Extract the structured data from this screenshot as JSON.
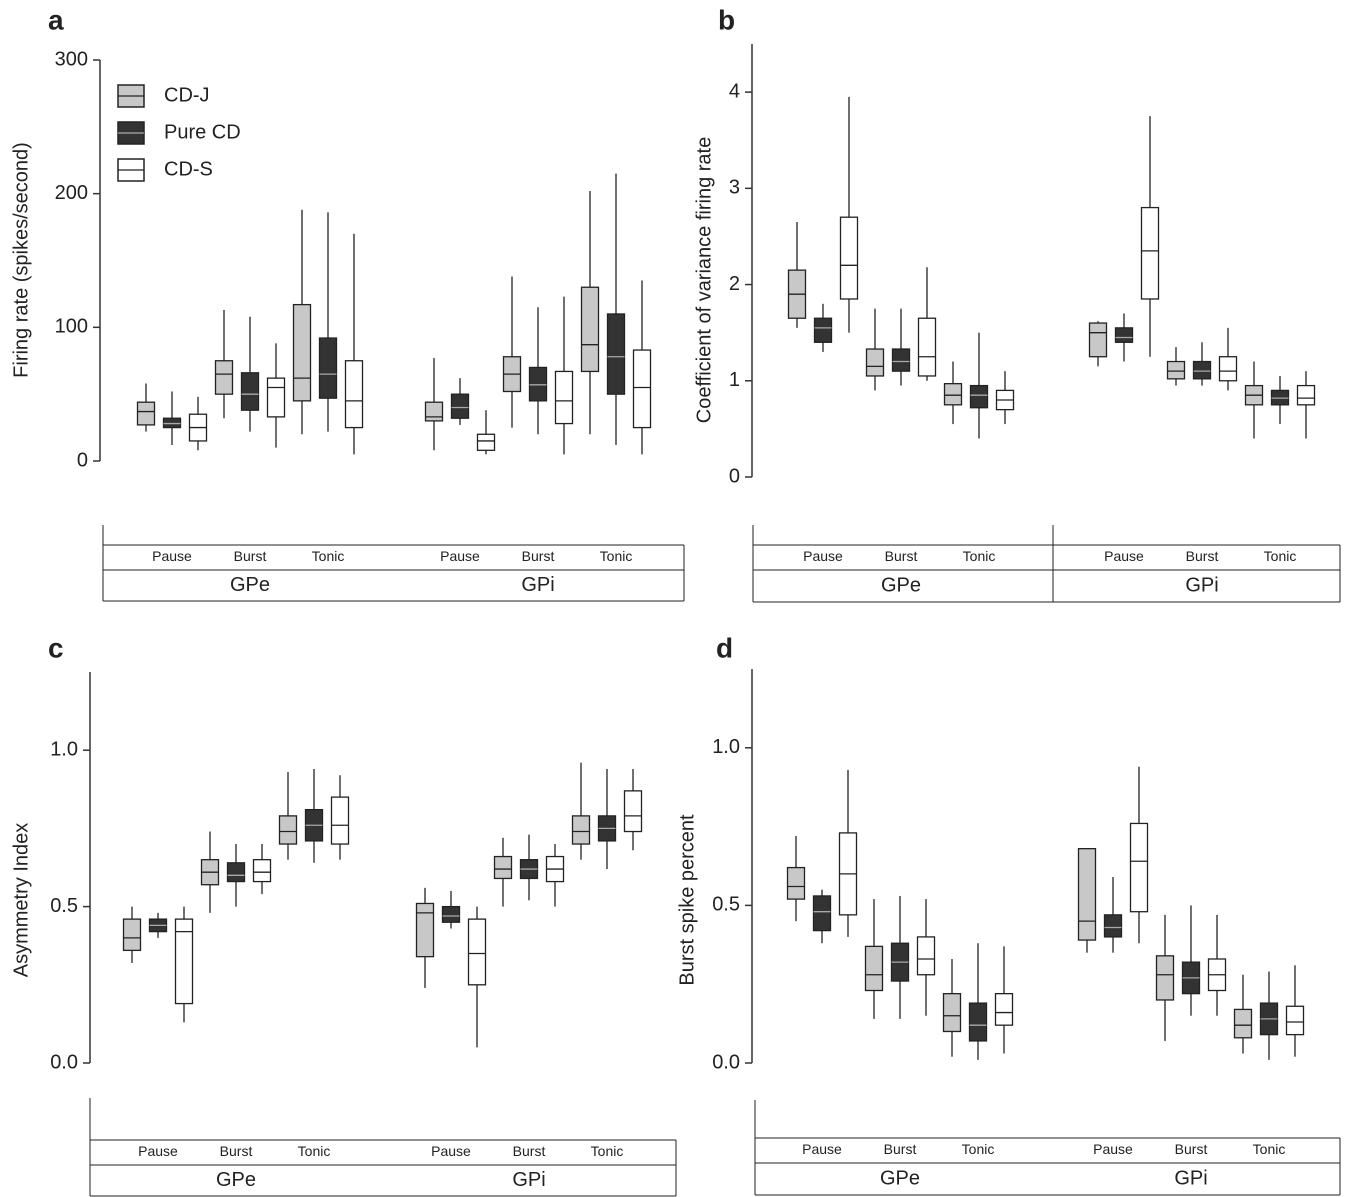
{
  "chart_data": [
    {
      "type": "box",
      "panel": "a",
      "ylabel": "Firing rate (spikes/second)",
      "ylim": [
        0,
        300
      ],
      "yticks": [
        0,
        100,
        200,
        300
      ],
      "groups": [
        "GPe",
        "GPi"
      ],
      "categories": [
        "Pause",
        "Burst",
        "Tonic",
        "Pause",
        "Burst",
        "Tonic"
      ],
      "legend": "top-left",
      "series": [
        {
          "name": "CD-J",
          "color": "#c8c8c8",
          "values": [
            {
              "min": 22,
              "q1": 27,
              "median": 37,
              "q3": 44,
              "max": 58
            },
            {
              "min": 32,
              "q1": 50,
              "median": 65,
              "q3": 75,
              "max": 113
            },
            {
              "min": 20,
              "q1": 45,
              "median": 62,
              "q3": 117,
              "max": 188
            },
            {
              "min": 8,
              "q1": 30,
              "median": 33,
              "q3": 44,
              "max": 77
            },
            {
              "min": 25,
              "q1": 52,
              "median": 65,
              "q3": 78,
              "max": 138
            },
            {
              "min": 20,
              "q1": 67,
              "median": 87,
              "q3": 130,
              "max": 202
            }
          ]
        },
        {
          "name": "Pure CD",
          "color": "#333333",
          "values": [
            {
              "min": 12,
              "q1": 25,
              "median": 28,
              "q3": 32,
              "max": 52
            },
            {
              "min": 22,
              "q1": 38,
              "median": 50,
              "q3": 66,
              "max": 108
            },
            {
              "min": 22,
              "q1": 47,
              "median": 65,
              "q3": 92,
              "max": 186
            },
            {
              "min": 27,
              "q1": 32,
              "median": 40,
              "q3": 50,
              "max": 62
            },
            {
              "min": 20,
              "q1": 45,
              "median": 57,
              "q3": 70,
              "max": 115
            },
            {
              "min": 12,
              "q1": 50,
              "median": 78,
              "q3": 110,
              "max": 215
            }
          ]
        },
        {
          "name": "CD-S",
          "color": "#ffffff",
          "values": [
            {
              "min": 8,
              "q1": 15,
              "median": 25,
              "q3": 35,
              "max": 48
            },
            {
              "min": 10,
              "q1": 33,
              "median": 55,
              "q3": 62,
              "max": 88
            },
            {
              "min": 5,
              "q1": 25,
              "median": 45,
              "q3": 75,
              "max": 170
            },
            {
              "min": 5,
              "q1": 8,
              "median": 15,
              "q3": 20,
              "max": 38
            },
            {
              "min": 5,
              "q1": 28,
              "median": 45,
              "q3": 67,
              "max": 123
            },
            {
              "min": 5,
              "q1": 25,
              "median": 55,
              "q3": 83,
              "max": 135
            }
          ]
        }
      ]
    },
    {
      "type": "box",
      "panel": "b",
      "ylabel": "Coefficient of variance firing rate",
      "ylim": [
        0,
        4.5
      ],
      "yticks": [
        0,
        1,
        2,
        3,
        4
      ],
      "groups": [
        "GPe",
        "GPi"
      ],
      "categories": [
        "Pause",
        "Burst",
        "Tonic",
        "Pause",
        "Burst",
        "Tonic"
      ],
      "series": [
        {
          "name": "CD-J",
          "color": "#c8c8c8",
          "values": [
            {
              "min": 1.55,
              "q1": 1.65,
              "median": 1.9,
              "q3": 2.15,
              "max": 2.65
            },
            {
              "min": 0.9,
              "q1": 1.05,
              "median": 1.15,
              "q3": 1.33,
              "max": 1.75
            },
            {
              "min": 0.55,
              "q1": 0.75,
              "median": 0.85,
              "q3": 0.97,
              "max": 1.2
            },
            {
              "min": 1.15,
              "q1": 1.25,
              "median": 1.5,
              "q3": 1.6,
              "max": 1.62
            },
            {
              "min": 0.95,
              "q1": 1.02,
              "median": 1.1,
              "q3": 1.2,
              "max": 1.35
            },
            {
              "min": 0.4,
              "q1": 0.75,
              "median": 0.85,
              "q3": 0.95,
              "max": 1.2
            }
          ]
        },
        {
          "name": "Pure CD",
          "color": "#333333",
          "values": [
            {
              "min": 1.3,
              "q1": 1.4,
              "median": 1.55,
              "q3": 1.65,
              "max": 1.8
            },
            {
              "min": 0.95,
              "q1": 1.1,
              "median": 1.2,
              "q3": 1.33,
              "max": 1.75
            },
            {
              "min": 0.4,
              "q1": 0.72,
              "median": 0.85,
              "q3": 0.95,
              "max": 1.5
            },
            {
              "min": 1.2,
              "q1": 1.4,
              "median": 1.45,
              "q3": 1.55,
              "max": 1.7
            },
            {
              "min": 0.95,
              "q1": 1.02,
              "median": 1.1,
              "q3": 1.2,
              "max": 1.4
            },
            {
              "min": 0.55,
              "q1": 0.75,
              "median": 0.82,
              "q3": 0.9,
              "max": 1.05
            }
          ]
        },
        {
          "name": "CD-S",
          "color": "#ffffff",
          "values": [
            {
              "min": 1.5,
              "q1": 1.85,
              "median": 2.2,
              "q3": 2.7,
              "max": 3.95
            },
            {
              "min": 1.0,
              "q1": 1.05,
              "median": 1.25,
              "q3": 1.65,
              "max": 2.18
            },
            {
              "min": 0.55,
              "q1": 0.7,
              "median": 0.8,
              "q3": 0.9,
              "max": 1.1
            },
            {
              "min": 1.25,
              "q1": 1.85,
              "median": 2.35,
              "q3": 2.8,
              "max": 3.75
            },
            {
              "min": 0.9,
              "q1": 1.0,
              "median": 1.1,
              "q3": 1.25,
              "max": 1.55
            },
            {
              "min": 0.4,
              "q1": 0.75,
              "median": 0.82,
              "q3": 0.95,
              "max": 1.1
            }
          ]
        }
      ]
    },
    {
      "type": "box",
      "panel": "c",
      "ylabel": "Asymmetry Index",
      "ylim": [
        0,
        1.25
      ],
      "yticks": [
        {
          "value": 0,
          "label": "0.0"
        },
        {
          "value": 0.5,
          "label": "0.5"
        },
        {
          "value": 1,
          "label": "1.0"
        }
      ],
      "groups": [
        "GPe",
        "GPi"
      ],
      "categories": [
        "Pause",
        "Burst",
        "Tonic",
        "Pause",
        "Burst",
        "Tonic"
      ],
      "series": [
        {
          "name": "CD-J",
          "color": "#c8c8c8",
          "values": [
            {
              "min": 0.32,
              "q1": 0.36,
              "median": 0.4,
              "q3": 0.46,
              "max": 0.5
            },
            {
              "min": 0.48,
              "q1": 0.57,
              "median": 0.61,
              "q3": 0.65,
              "max": 0.74
            },
            {
              "min": 0.65,
              "q1": 0.7,
              "median": 0.74,
              "q3": 0.79,
              "max": 0.93
            },
            {
              "min": 0.24,
              "q1": 0.34,
              "median": 0.48,
              "q3": 0.51,
              "max": 0.56
            },
            {
              "min": 0.5,
              "q1": 0.59,
              "median": 0.62,
              "q3": 0.66,
              "max": 0.72
            },
            {
              "min": 0.65,
              "q1": 0.7,
              "median": 0.74,
              "q3": 0.79,
              "max": 0.96
            }
          ]
        },
        {
          "name": "Pure CD",
          "color": "#333333",
          "values": [
            {
              "min": 0.4,
              "q1": 0.42,
              "median": 0.44,
              "q3": 0.46,
              "max": 0.48
            },
            {
              "min": 0.5,
              "q1": 0.58,
              "median": 0.6,
              "q3": 0.64,
              "max": 0.7
            },
            {
              "min": 0.64,
              "q1": 0.71,
              "median": 0.76,
              "q3": 0.81,
              "max": 0.94
            },
            {
              "min": 0.43,
              "q1": 0.45,
              "median": 0.47,
              "q3": 0.5,
              "max": 0.55
            },
            {
              "min": 0.52,
              "q1": 0.59,
              "median": 0.62,
              "q3": 0.65,
              "max": 0.73
            },
            {
              "min": 0.62,
              "q1": 0.71,
              "median": 0.75,
              "q3": 0.79,
              "max": 0.94
            }
          ]
        },
        {
          "name": "CD-S",
          "color": "#ffffff",
          "values": [
            {
              "min": 0.13,
              "q1": 0.19,
              "median": 0.42,
              "q3": 0.46,
              "max": 0.5
            },
            {
              "min": 0.54,
              "q1": 0.58,
              "median": 0.61,
              "q3": 0.65,
              "max": 0.7
            },
            {
              "min": 0.65,
              "q1": 0.7,
              "median": 0.76,
              "q3": 0.85,
              "max": 0.92
            },
            {
              "min": 0.05,
              "q1": 0.25,
              "median": 0.35,
              "q3": 0.46,
              "max": 0.5
            },
            {
              "min": 0.5,
              "q1": 0.58,
              "median": 0.62,
              "q3": 0.66,
              "max": 0.7
            },
            {
              "min": 0.68,
              "q1": 0.74,
              "median": 0.79,
              "q3": 0.87,
              "max": 0.94
            }
          ]
        }
      ]
    },
    {
      "type": "box",
      "panel": "d",
      "ylabel": "Burst spike percent",
      "ylim": [
        0,
        1.25
      ],
      "yticks": [
        {
          "value": 0,
          "label": "0.0"
        },
        {
          "value": 0.5,
          "label": "0.5"
        },
        {
          "value": 1,
          "label": "1.0"
        }
      ],
      "groups": [
        "GPe",
        "GPi"
      ],
      "categories": [
        "Pause",
        "Burst",
        "Tonic",
        "Pause",
        "Burst",
        "Tonic"
      ],
      "series": [
        {
          "name": "CD-J",
          "color": "#c8c8c8",
          "values": [
            {
              "min": 0.45,
              "q1": 0.52,
              "median": 0.56,
              "q3": 0.62,
              "max": 0.72
            },
            {
              "min": 0.14,
              "q1": 0.23,
              "median": 0.28,
              "q3": 0.37,
              "max": 0.52
            },
            {
              "min": 0.02,
              "q1": 0.1,
              "median": 0.15,
              "q3": 0.22,
              "max": 0.33
            },
            {
              "min": 0.35,
              "q1": 0.39,
              "median": 0.45,
              "q3": 0.68,
              "max": 0.68
            },
            {
              "min": 0.07,
              "q1": 0.2,
              "median": 0.28,
              "q3": 0.34,
              "max": 0.47
            },
            {
              "min": 0.03,
              "q1": 0.08,
              "median": 0.12,
              "q3": 0.17,
              "max": 0.28
            }
          ]
        },
        {
          "name": "Pure CD",
          "color": "#333333",
          "values": [
            {
              "min": 0.38,
              "q1": 0.42,
              "median": 0.48,
              "q3": 0.53,
              "max": 0.55
            },
            {
              "min": 0.14,
              "q1": 0.26,
              "median": 0.32,
              "q3": 0.38,
              "max": 0.53
            },
            {
              "min": 0.01,
              "q1": 0.07,
              "median": 0.12,
              "q3": 0.19,
              "max": 0.38
            },
            {
              "min": 0.35,
              "q1": 0.4,
              "median": 0.43,
              "q3": 0.47,
              "max": 0.59
            },
            {
              "min": 0.15,
              "q1": 0.22,
              "median": 0.27,
              "q3": 0.32,
              "max": 0.5
            },
            {
              "min": 0.01,
              "q1": 0.09,
              "median": 0.14,
              "q3": 0.19,
              "max": 0.29
            }
          ]
        },
        {
          "name": "CD-S",
          "color": "#ffffff",
          "values": [
            {
              "min": 0.4,
              "q1": 0.47,
              "median": 0.6,
              "q3": 0.73,
              "max": 0.93
            },
            {
              "min": 0.15,
              "q1": 0.28,
              "median": 0.33,
              "q3": 0.4,
              "max": 0.52
            },
            {
              "min": 0.03,
              "q1": 0.12,
              "median": 0.16,
              "q3": 0.22,
              "max": 0.37
            },
            {
              "min": 0.38,
              "q1": 0.48,
              "median": 0.64,
              "q3": 0.76,
              "max": 0.94
            },
            {
              "min": 0.15,
              "q1": 0.23,
              "median": 0.28,
              "q3": 0.33,
              "max": 0.47
            },
            {
              "min": 0.02,
              "q1": 0.09,
              "median": 0.13,
              "q3": 0.18,
              "max": 0.31
            }
          ]
        }
      ]
    }
  ]
}
